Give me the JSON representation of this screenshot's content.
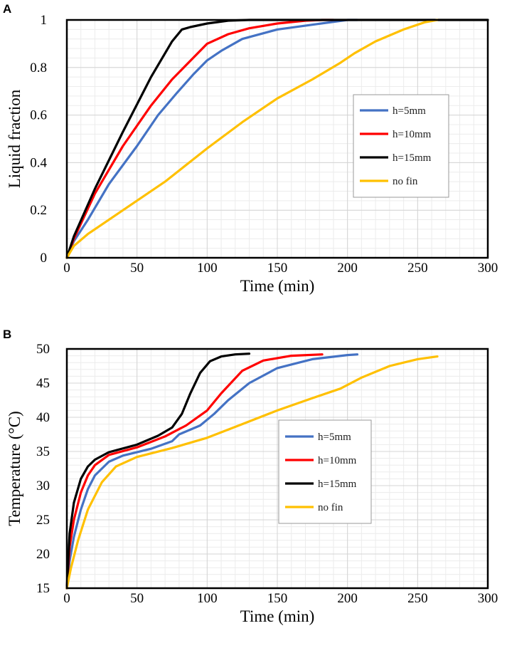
{
  "chart_data": [
    {
      "type": "line",
      "panel_label": "A",
      "title": "",
      "xlabel": "Time (min)",
      "ylabel": "Liquid fraction",
      "xlim": [
        0,
        300
      ],
      "ylim": [
        0,
        1
      ],
      "xticks": [
        0,
        50,
        100,
        150,
        200,
        250,
        300
      ],
      "yticks": [
        0,
        0.2,
        0.4,
        0.6,
        0.8,
        1
      ],
      "ytick_labels": [
        "0",
        "0.2",
        "0.4",
        "0.6",
        "0.8",
        "1"
      ],
      "grid": true,
      "legend_position": "right",
      "series": [
        {
          "name": "h=5mm",
          "color": "#4472C4",
          "points": [
            [
              0,
              0
            ],
            [
              5,
              0.07
            ],
            [
              15,
              0.16
            ],
            [
              30,
              0.31
            ],
            [
              50,
              0.47
            ],
            [
              65,
              0.6
            ],
            [
              78,
              0.69
            ],
            [
              90,
              0.77
            ],
            [
              100,
              0.83
            ],
            [
              110,
              0.87
            ],
            [
              125,
              0.92
            ],
            [
              150,
              0.96
            ],
            [
              175,
              0.98
            ],
            [
              200,
              1.0
            ],
            [
              207,
              1.0
            ]
          ]
        },
        {
          "name": "h=10mm",
          "color": "#FF0000",
          "points": [
            [
              0,
              0
            ],
            [
              5,
              0.08
            ],
            [
              20,
              0.27
            ],
            [
              40,
              0.47
            ],
            [
              60,
              0.64
            ],
            [
              75,
              0.75
            ],
            [
              90,
              0.84
            ],
            [
              100,
              0.9
            ],
            [
              115,
              0.94
            ],
            [
              130,
              0.965
            ],
            [
              150,
              0.985
            ],
            [
              170,
              0.997
            ],
            [
              182,
              1.0
            ],
            [
              190,
              1.0
            ]
          ]
        },
        {
          "name": "h=15mm",
          "color": "#000000",
          "points": [
            [
              0,
              0
            ],
            [
              5,
              0.09
            ],
            [
              20,
              0.29
            ],
            [
              40,
              0.53
            ],
            [
              60,
              0.76
            ],
            [
              75,
              0.91
            ],
            [
              82,
              0.96
            ],
            [
              88,
              0.97
            ],
            [
              100,
              0.985
            ],
            [
              115,
              0.997
            ],
            [
              130,
              1.0
            ],
            [
              300,
              1.0
            ]
          ]
        },
        {
          "name": "no fin",
          "color": "#FFC000",
          "points": [
            [
              0,
              0
            ],
            [
              5,
              0.05
            ],
            [
              15,
              0.1
            ],
            [
              40,
              0.2
            ],
            [
              70,
              0.32
            ],
            [
              100,
              0.46
            ],
            [
              125,
              0.57
            ],
            [
              150,
              0.67
            ],
            [
              175,
              0.75
            ],
            [
              195,
              0.82
            ],
            [
              205,
              0.86
            ],
            [
              220,
              0.91
            ],
            [
              240,
              0.96
            ],
            [
              255,
              0.99
            ],
            [
              264,
              1.0
            ]
          ]
        }
      ]
    },
    {
      "type": "line",
      "panel_label": "B",
      "title": "",
      "xlabel": "Time (min)",
      "ylabel": "Temperature (°C)",
      "xlim": [
        0,
        300
      ],
      "ylim": [
        15,
        50
      ],
      "xticks": [
        0,
        50,
        100,
        150,
        200,
        250,
        300
      ],
      "yticks": [
        15,
        20,
        25,
        30,
        35,
        40,
        45,
        50
      ],
      "ytick_labels": [
        "15",
        "20",
        "25",
        "30",
        "35",
        "40",
        "45",
        "50"
      ],
      "grid": true,
      "legend_position": "center-right",
      "series": [
        {
          "name": "h=5mm",
          "color": "#4472C4",
          "points": [
            [
              0,
              15
            ],
            [
              2,
              19
            ],
            [
              5,
              22.5
            ],
            [
              10,
              26.5
            ],
            [
              15,
              29.5
            ],
            [
              20,
              31.5
            ],
            [
              30,
              33.5
            ],
            [
              40,
              34.4
            ],
            [
              60,
              35.4
            ],
            [
              75,
              36.5
            ],
            [
              80,
              37.5
            ],
            [
              95,
              38.8
            ],
            [
              105,
              40.5
            ],
            [
              115,
              42.5
            ],
            [
              130,
              45
            ],
            [
              150,
              47.2
            ],
            [
              175,
              48.5
            ],
            [
              200,
              49.1
            ],
            [
              207,
              49.2
            ]
          ]
        },
        {
          "name": "h=10mm",
          "color": "#FF0000",
          "points": [
            [
              0,
              15
            ],
            [
              2,
              21
            ],
            [
              5,
              25
            ],
            [
              10,
              29
            ],
            [
              15,
              31.5
            ],
            [
              20,
              33
            ],
            [
              30,
              34.5
            ],
            [
              50,
              35.6
            ],
            [
              70,
              37.2
            ],
            [
              85,
              38.8
            ],
            [
              100,
              41
            ],
            [
              110,
              43.5
            ],
            [
              125,
              46.8
            ],
            [
              140,
              48.3
            ],
            [
              160,
              49
            ],
            [
              182,
              49.2
            ]
          ]
        },
        {
          "name": "h=15mm",
          "color": "#000000",
          "points": [
            [
              0,
              15
            ],
            [
              2,
              23
            ],
            [
              5,
              27.5
            ],
            [
              10,
              31
            ],
            [
              15,
              32.8
            ],
            [
              20,
              33.8
            ],
            [
              30,
              34.9
            ],
            [
              50,
              36
            ],
            [
              65,
              37.3
            ],
            [
              75,
              38.5
            ],
            [
              82,
              40.5
            ],
            [
              88,
              43.5
            ],
            [
              95,
              46.5
            ],
            [
              102,
              48.2
            ],
            [
              110,
              48.9
            ],
            [
              120,
              49.2
            ],
            [
              130,
              49.3
            ]
          ]
        },
        {
          "name": "no fin",
          "color": "#FFC000",
          "points": [
            [
              0,
              15
            ],
            [
              3,
              18
            ],
            [
              8,
              22
            ],
            [
              15,
              26.5
            ],
            [
              25,
              30.5
            ],
            [
              35,
              32.8
            ],
            [
              50,
              34.2
            ],
            [
              75,
              35.5
            ],
            [
              100,
              37.0
            ],
            [
              125,
              39
            ],
            [
              150,
              41
            ],
            [
              175,
              42.8
            ],
            [
              195,
              44.2
            ],
            [
              210,
              45.8
            ],
            [
              230,
              47.5
            ],
            [
              250,
              48.5
            ],
            [
              264,
              48.9
            ]
          ]
        }
      ]
    }
  ]
}
